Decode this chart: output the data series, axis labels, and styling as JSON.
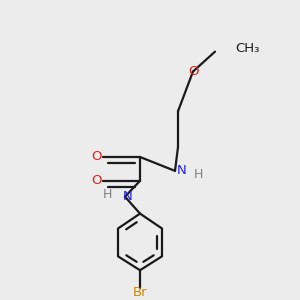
{
  "bg_color": "#ececec",
  "bond_color": "#1a1a1a",
  "N_color": "#2020dd",
  "O_color": "#dd2020",
  "Br_color": "#cc8800",
  "H_color": "#808080",
  "line_width": 1.6,
  "figsize": [
    3.0,
    3.0
  ],
  "dpi": 100,
  "xlim": [
    -0.1,
    1.1
  ],
  "ylim": [
    -0.05,
    1.05
  ]
}
